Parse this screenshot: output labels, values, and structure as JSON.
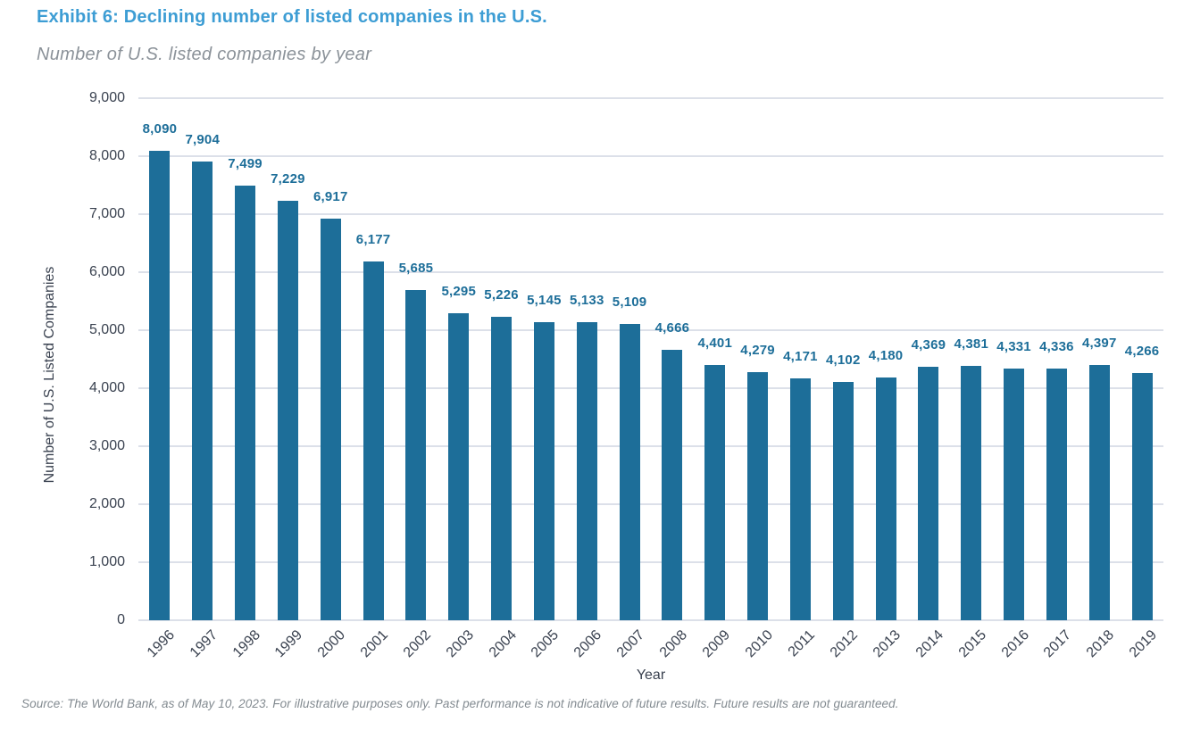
{
  "header": {
    "title": "Exhibit 6: Declining number of listed companies in the U.S.",
    "subtitle": "Number of U.S. listed companies by year"
  },
  "chart_data": {
    "type": "bar",
    "title": "Exhibit 6: Declining number of listed companies in the U.S.",
    "subtitle": "Number of U.S. listed companies by year",
    "xlabel": "Year",
    "ylabel": "Number of U.S. Listed Companies",
    "ylim": [
      0,
      9000
    ],
    "ytick_step": 1000,
    "ytick_labels": [
      "0",
      "1,000",
      "2,000",
      "3,000",
      "4,000",
      "5,000",
      "6,000",
      "7,000",
      "8,000",
      "9,000"
    ],
    "grid": "horizontal",
    "legend": "none",
    "categories": [
      "1996",
      "1997",
      "1998",
      "1999",
      "2000",
      "2001",
      "2002",
      "2003",
      "2004",
      "2005",
      "2006",
      "2007",
      "2008",
      "2009",
      "2010",
      "2011",
      "2012",
      "2013",
      "2014",
      "2015",
      "2016",
      "2017",
      "2018",
      "2019"
    ],
    "values": [
      8090,
      7904,
      7499,
      7229,
      6917,
      6177,
      5685,
      5295,
      5226,
      5145,
      5133,
      5109,
      4666,
      4401,
      4279,
      4171,
      4102,
      4180,
      4369,
      4381,
      4331,
      4336,
      4397,
      4266
    ],
    "data_labels": [
      "8,090",
      "7,904",
      "7,499",
      "7,229",
      "6,917",
      "6,177",
      "5,685",
      "5,295",
      "5,226",
      "5,145",
      "5,133",
      "5,109",
      "4,666",
      "4,401",
      "4,279",
      "4,171",
      "4,102",
      "4,180",
      "4,369",
      "4,381",
      "4,331",
      "4,336",
      "4,397",
      "4,266"
    ]
  },
  "footer": {
    "source": "Source: The World Bank, as of May 10, 2023. For illustrative purposes only. Past performance is not indicative of future results. Future results are not guaranteed."
  },
  "colors": {
    "title": "#3d9dd4",
    "subtitle": "#8b9299",
    "bar": "#1d6e99",
    "bar_label": "#1d6e99",
    "axis_text": "#3a4250",
    "gridline": "#dce0e9",
    "source_text": "#828a90"
  }
}
